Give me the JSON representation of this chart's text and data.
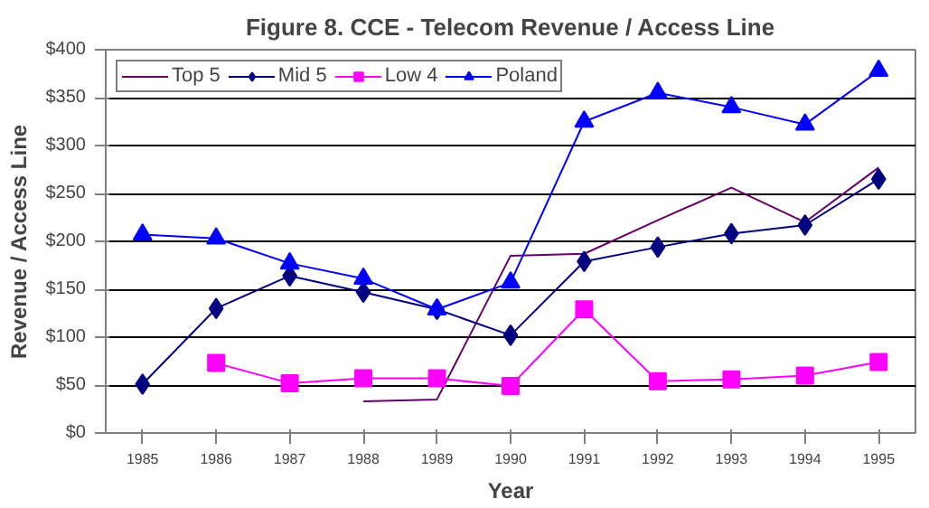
{
  "chart_data": {
    "type": "line",
    "title": "Figure 8. CCE - Telecom Revenue / Access Line",
    "xlabel": "Year",
    "ylabel": "Revenue / Access Line",
    "categories": [
      "1985",
      "1986",
      "1987",
      "1988",
      "1989",
      "1990",
      "1991",
      "1992",
      "1993",
      "1994",
      "1995"
    ],
    "series": [
      {
        "name": "Top 5",
        "color": "#660066",
        "marker": "none",
        "values": [
          null,
          null,
          null,
          33,
          35,
          185,
          187,
          222,
          256,
          220,
          277
        ]
      },
      {
        "name": "Mid 5",
        "color": "#000080",
        "marker": "diamond",
        "values": [
          51,
          130,
          164,
          147,
          129,
          102,
          179,
          194,
          208,
          217,
          265
        ]
      },
      {
        "name": "Low 4",
        "color": "#ff00ff",
        "marker": "square",
        "values": [
          null,
          73,
          52,
          57,
          57,
          49,
          129,
          54,
          56,
          60,
          74
        ]
      },
      {
        "name": "Poland",
        "color": "#0000ff",
        "marker": "triangle",
        "values": [
          207,
          203,
          177,
          161,
          129,
          157,
          325,
          355,
          340,
          322,
          378
        ]
      }
    ],
    "ylim": [
      0,
      400
    ],
    "yticks": [
      {
        "value": 0,
        "label": "$0"
      },
      {
        "value": 50,
        "label": "$50"
      },
      {
        "value": 100,
        "label": "$100"
      },
      {
        "value": 150,
        "label": "$150"
      },
      {
        "value": 200,
        "label": "$200"
      },
      {
        "value": 250,
        "label": "$250"
      },
      {
        "value": 300,
        "label": "$300"
      },
      {
        "value": 350,
        "label": "$350"
      },
      {
        "value": 400,
        "label": "$400"
      }
    ],
    "grid": "y",
    "legend": "top left",
    "line_style": "solid"
  }
}
